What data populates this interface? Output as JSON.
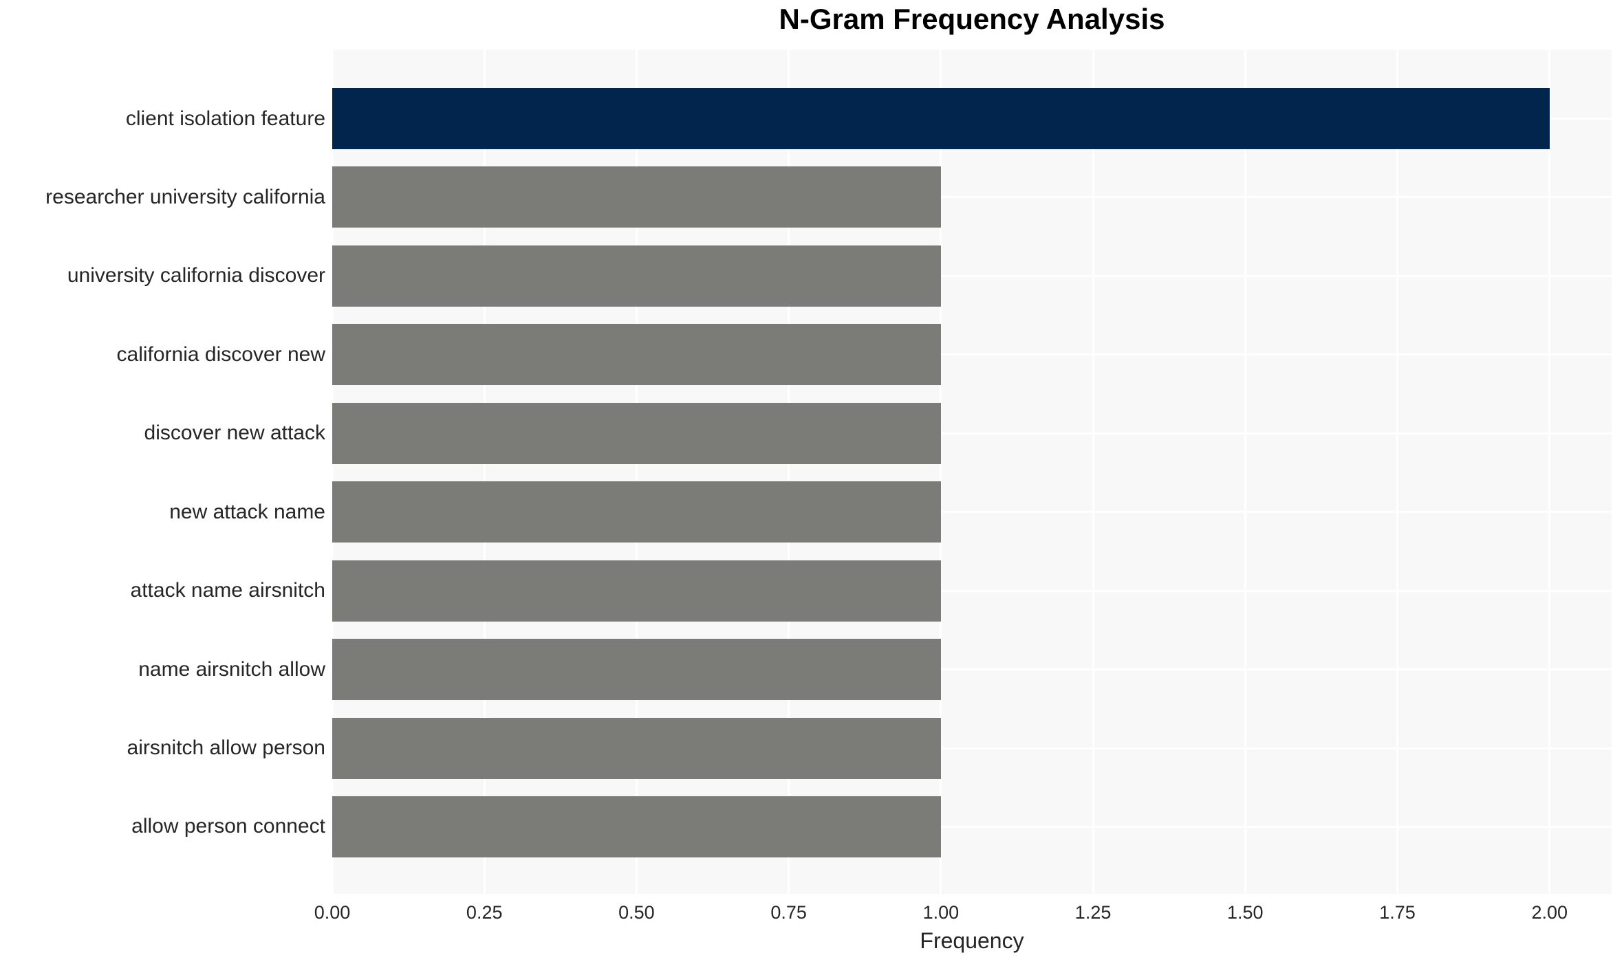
{
  "chart_data": {
    "type": "bar",
    "orientation": "horizontal",
    "title": "N-Gram Frequency Analysis",
    "xlabel": "Frequency",
    "ylabel": "",
    "categories": [
      "client isolation feature",
      "researcher university california",
      "university california discover",
      "california discover new",
      "discover new attack",
      "new attack name",
      "attack name airsnitch",
      "name airsnitch allow",
      "airsnitch allow person",
      "allow person connect"
    ],
    "values": [
      2.0,
      1.0,
      1.0,
      1.0,
      1.0,
      1.0,
      1.0,
      1.0,
      1.0,
      1.0
    ],
    "bar_colors": [
      "#02254e",
      "#7b7b78",
      "#7b7b78",
      "#7b7b78",
      "#7b7b78",
      "#7b7b78",
      "#7b7b78",
      "#7b7b78",
      "#7b7b78",
      "#7b7b78"
    ],
    "xticks": [
      {
        "value": 0.0,
        "label": "0.00"
      },
      {
        "value": 0.25,
        "label": "0.25"
      },
      {
        "value": 0.5,
        "label": "0.50"
      },
      {
        "value": 0.75,
        "label": "0.75"
      },
      {
        "value": 1.0,
        "label": "1.00"
      },
      {
        "value": 1.25,
        "label": "1.25"
      },
      {
        "value": 1.5,
        "label": "1.50"
      },
      {
        "value": 1.75,
        "label": "1.75"
      },
      {
        "value": 2.0,
        "label": "2.00"
      }
    ],
    "xlim": [
      0,
      2.102
    ],
    "grid": true,
    "legend": "none",
    "colors": {
      "highlight_bar": "#02254e",
      "default_bar": "#7b7b78",
      "plot_background": "#f8f8f8",
      "grid_line": "#ffffff",
      "text": "#262626",
      "title_text": "#000000"
    }
  }
}
